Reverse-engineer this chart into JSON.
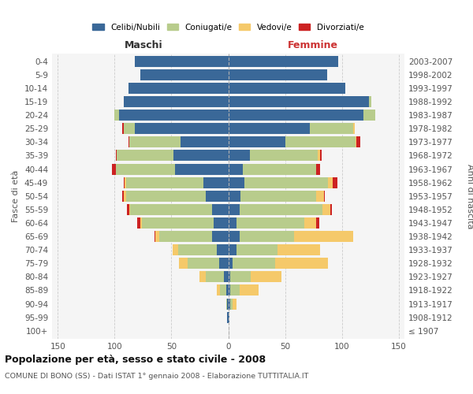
{
  "age_groups": [
    "100+",
    "95-99",
    "90-94",
    "85-89",
    "80-84",
    "75-79",
    "70-74",
    "65-69",
    "60-64",
    "55-59",
    "50-54",
    "45-49",
    "40-44",
    "35-39",
    "30-34",
    "25-29",
    "20-24",
    "15-19",
    "10-14",
    "5-9",
    "0-4"
  ],
  "birth_years": [
    "≤ 1907",
    "1908-1912",
    "1913-1917",
    "1918-1922",
    "1923-1927",
    "1928-1932",
    "1933-1937",
    "1938-1942",
    "1943-1947",
    "1948-1952",
    "1953-1957",
    "1958-1962",
    "1963-1967",
    "1968-1972",
    "1973-1977",
    "1978-1982",
    "1983-1987",
    "1988-1992",
    "1993-1997",
    "1998-2002",
    "2003-2007"
  ],
  "male": {
    "celibi": [
      0,
      1,
      1,
      2,
      4,
      8,
      10,
      14,
      13,
      14,
      20,
      22,
      47,
      48,
      42,
      82,
      96,
      92,
      88,
      77,
      82
    ],
    "coniugati": [
      0,
      0,
      1,
      5,
      16,
      28,
      34,
      47,
      63,
      72,
      70,
      68,
      52,
      50,
      45,
      10,
      4,
      0,
      0,
      0,
      0
    ],
    "vedovi": [
      0,
      0,
      0,
      3,
      5,
      7,
      5,
      3,
      1,
      1,
      2,
      1,
      0,
      0,
      0,
      0,
      0,
      0,
      0,
      0,
      0
    ],
    "divorziati": [
      0,
      0,
      0,
      0,
      0,
      0,
      0,
      1,
      3,
      2,
      1,
      1,
      3,
      1,
      1,
      1,
      0,
      0,
      0,
      0,
      0
    ]
  },
  "female": {
    "nubili": [
      0,
      1,
      2,
      2,
      2,
      4,
      7,
      10,
      7,
      10,
      11,
      14,
      13,
      19,
      50,
      72,
      119,
      124,
      103,
      87,
      97
    ],
    "coniugate": [
      0,
      0,
      2,
      8,
      18,
      37,
      36,
      48,
      60,
      73,
      66,
      74,
      64,
      60,
      62,
      38,
      10,
      2,
      0,
      0,
      0
    ],
    "vedove": [
      0,
      0,
      3,
      17,
      27,
      47,
      38,
      52,
      10,
      7,
      7,
      4,
      0,
      2,
      1,
      1,
      0,
      0,
      0,
      0,
      0
    ],
    "divorziate": [
      0,
      0,
      0,
      0,
      0,
      0,
      0,
      0,
      3,
      1,
      1,
      4,
      4,
      1,
      3,
      0,
      0,
      0,
      0,
      0,
      0
    ]
  },
  "colors": {
    "celibi": "#3a6898",
    "coniugati": "#b8cc8c",
    "vedovi": "#f5c96a",
    "divorziati": "#cc2222"
  },
  "title": "Popolazione per età, sesso e stato civile - 2008",
  "subtitle": "COMUNE DI BONO (SS) - Dati ISTAT 1° gennaio 2008 - Elaborazione TUTTITALIA.IT",
  "ylabel_left": "Fasce di età",
  "ylabel_right": "Anni di nascita",
  "xlabel_left": "Maschi",
  "xlabel_right": "Femmine",
  "xlim": 155,
  "bg_color": "#ffffff",
  "plot_bg": "#f5f5f5",
  "grid_color": "#cccccc"
}
